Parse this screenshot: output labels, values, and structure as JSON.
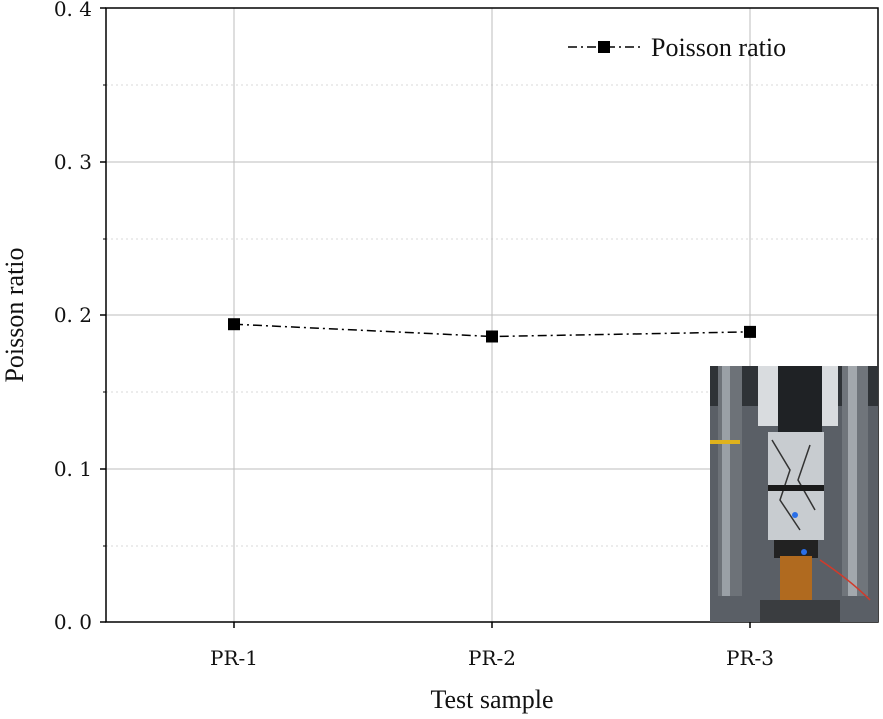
{
  "chart_data": {
    "type": "line",
    "title": "",
    "xlabel": "Test sample",
    "ylabel": "Poisson ratio",
    "categories": [
      "PR-1",
      "PR-2",
      "PR-3"
    ],
    "series": [
      {
        "name": "Poisson ratio",
        "values": [
          0.194,
          0.186,
          0.189
        ],
        "marker": "square",
        "line_style": "dash-dot",
        "color": "#000000"
      }
    ],
    "ylim": [
      0,
      0.4
    ],
    "yticks": [
      "0. 0",
      "0. 1",
      "0. 2",
      "0. 3",
      "0. 4"
    ],
    "grid": true,
    "legend_position": "top-right",
    "inset": "photo-of-test-specimen-in-loading-frame"
  }
}
